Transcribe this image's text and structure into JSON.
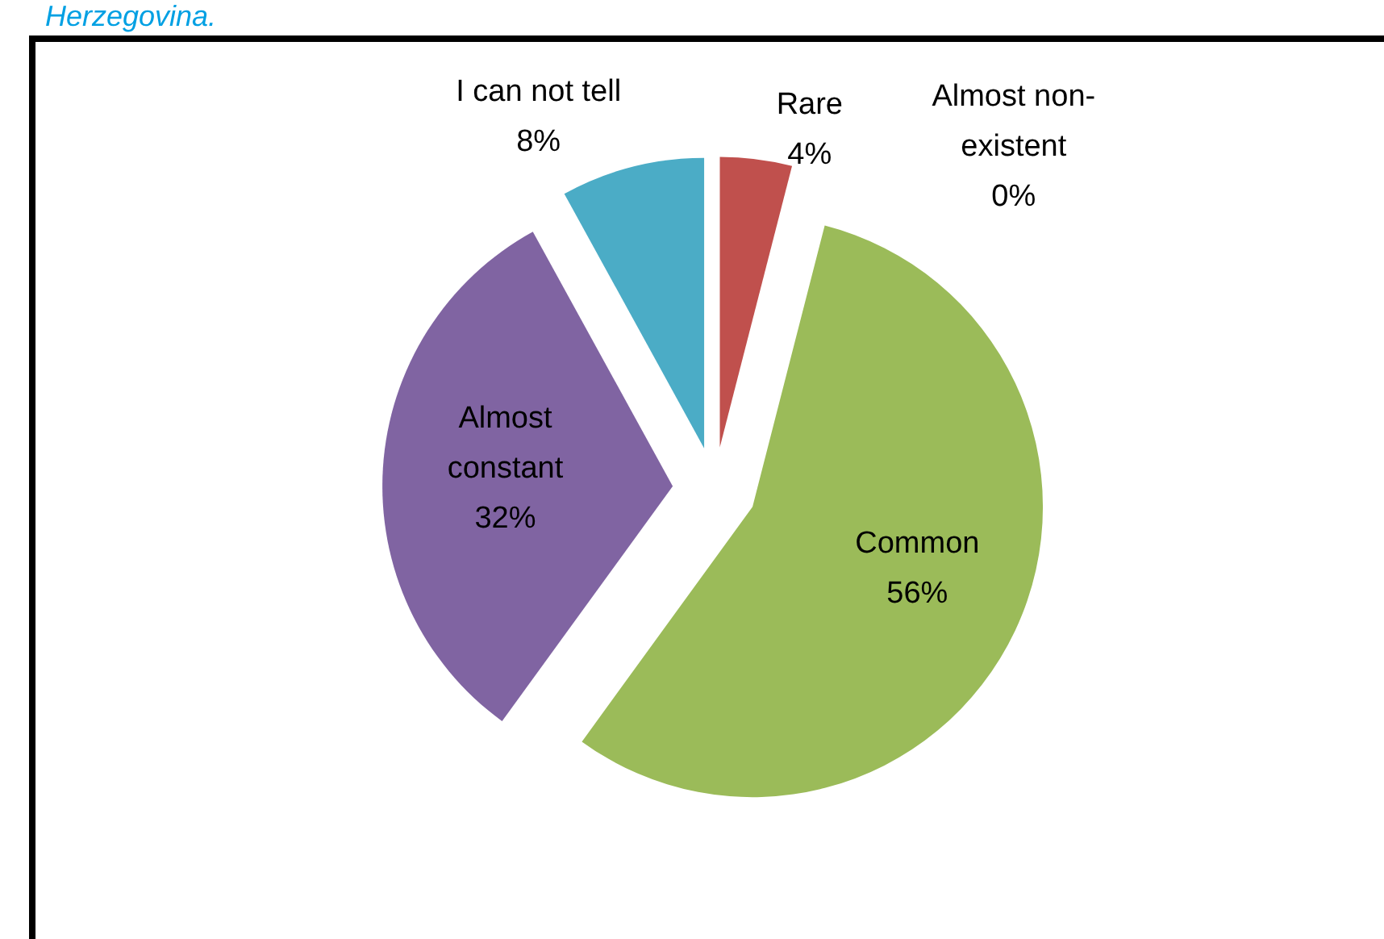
{
  "chart_data": {
    "type": "pie",
    "title": "Herzegovina.",
    "categories": [
      "Rare",
      "Almost non-existent",
      "Common",
      "Almost constant",
      "I can not tell"
    ],
    "values": [
      4,
      0,
      56,
      32,
      8
    ],
    "value_labels": [
      "4%",
      "0%",
      "56%",
      "32%",
      "8%"
    ],
    "colors": [
      "#c0504d",
      null,
      "#9bbb59",
      "#8064a2",
      "#4bacc6"
    ]
  }
}
